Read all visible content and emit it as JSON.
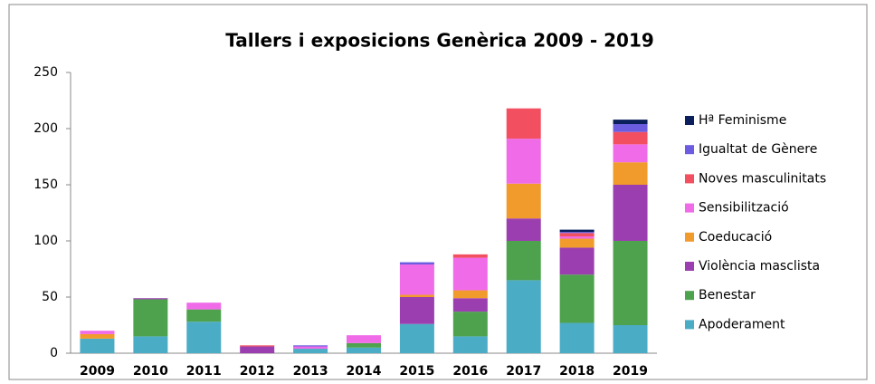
{
  "chart_data": {
    "type": "bar",
    "stacked": true,
    "title": "Tallers i exposicions Genèrica 2009 - 2019",
    "categories": [
      "2009",
      "2010",
      "2011",
      "2012",
      "2013",
      "2014",
      "2015",
      "2016",
      "2017",
      "2018",
      "2019"
    ],
    "series": [
      {
        "name": "Apoderament",
        "color": "#4bacc6",
        "values": [
          13,
          15,
          28,
          0,
          4,
          5,
          26,
          15,
          65,
          27,
          25
        ]
      },
      {
        "name": "Benestar",
        "color": "#4ea24e",
        "values": [
          0,
          33,
          11,
          0,
          0,
          4,
          0,
          22,
          35,
          43,
          75
        ]
      },
      {
        "name": "Violència masclista",
        "color": "#9b3fb0",
        "values": [
          0,
          1,
          0,
          6,
          0,
          0,
          24,
          12,
          20,
          24,
          50
        ]
      },
      {
        "name": "Coeducació",
        "color": "#f19b2c",
        "values": [
          4,
          0,
          0,
          0,
          0,
          0,
          2,
          7,
          31,
          8,
          20
        ]
      },
      {
        "name": "Sensibilització",
        "color": "#f06be8",
        "values": [
          3,
          0,
          6,
          0,
          2,
          7,
          27,
          29,
          40,
          2,
          16
        ]
      },
      {
        "name": "Noves masculinitats",
        "color": "#f25060",
        "values": [
          0,
          0,
          0,
          1,
          0,
          0,
          0,
          3,
          27,
          3,
          11
        ]
      },
      {
        "name": "Igualtat de Gènere",
        "color": "#6b5ce0",
        "values": [
          0,
          0,
          0,
          0,
          1,
          0,
          2,
          0,
          0,
          1,
          7
        ]
      },
      {
        "name": "Hª Feminisme",
        "color": "#0a1f5c",
        "values": [
          0,
          0,
          0,
          0,
          0,
          0,
          0,
          0,
          0,
          2,
          4
        ]
      }
    ],
    "ylim": [
      0,
      250
    ],
    "yticks": [
      0,
      50,
      100,
      150,
      200,
      250
    ],
    "legend": "right"
  }
}
